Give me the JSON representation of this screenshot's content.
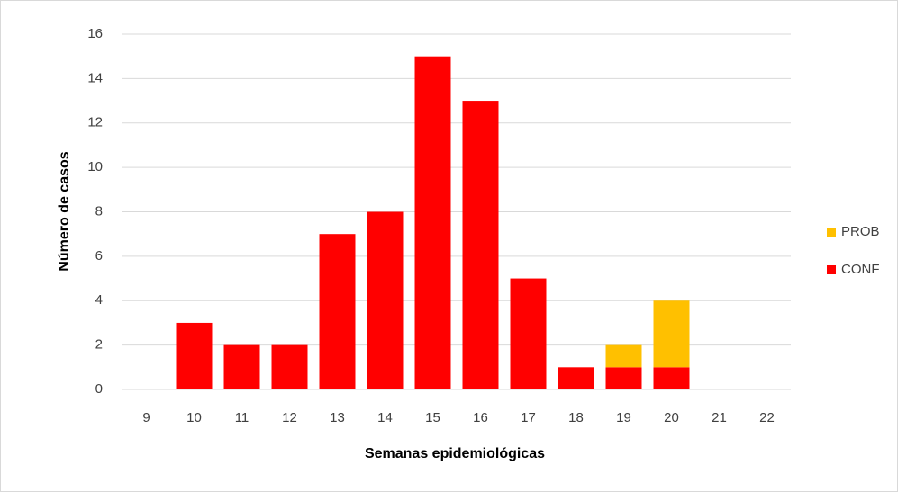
{
  "chart_data": {
    "type": "stacked_bar",
    "x_label": "Semanas  epidemiológicas",
    "y_label": "Número de casos",
    "categories": [
      9,
      10,
      11,
      12,
      13,
      14,
      15,
      16,
      17,
      18,
      19,
      20,
      21,
      22
    ],
    "series": [
      {
        "name": "CONF",
        "color": "#ff0000",
        "values": [
          0,
          3,
          2,
          2,
          7,
          8,
          15,
          13,
          5,
          1,
          1,
          1,
          0,
          0
        ]
      },
      {
        "name": "PROB",
        "color": "#ffc000",
        "values": [
          0,
          0,
          0,
          0,
          0,
          0,
          0,
          0,
          0,
          0,
          1,
          3,
          0,
          0
        ]
      }
    ],
    "ylim": [
      0,
      16
    ],
    "yticks": [
      0,
      2,
      4,
      6,
      8,
      10,
      12,
      14,
      16
    ],
    "grid": true,
    "legend": "right"
  }
}
